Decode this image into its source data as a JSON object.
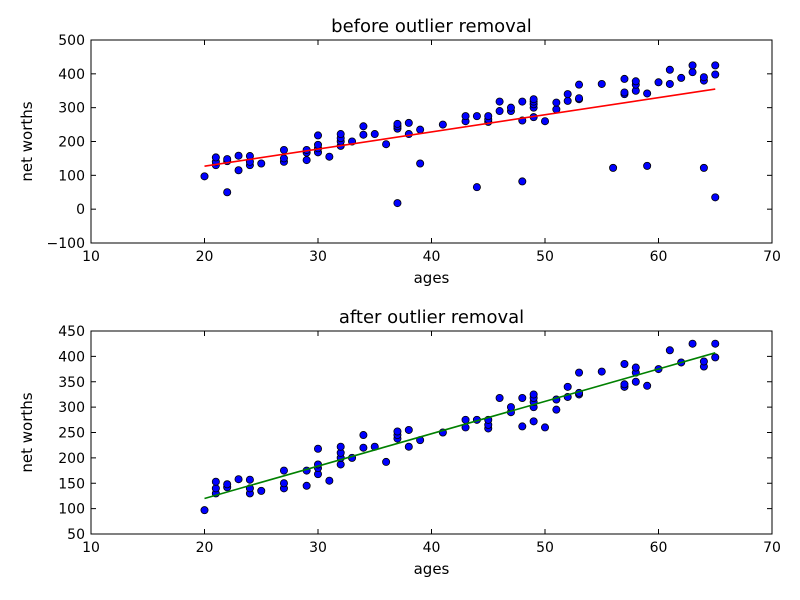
{
  "chart_data": [
    {
      "type": "scatter",
      "title": "before outlier removal",
      "xlabel": "ages",
      "ylabel": "net worths",
      "xlim": [
        10,
        70
      ],
      "ylim": [
        -100,
        500
      ],
      "xticks": [
        10,
        20,
        30,
        40,
        50,
        60,
        70
      ],
      "yticks": [
        -100,
        0,
        100,
        200,
        300,
        400,
        500
      ],
      "grid": false,
      "point_color": "#0000ff",
      "line_color": "#ff0000",
      "regression_line": {
        "x": [
          20,
          65
        ],
        "y": [
          127,
          355
        ]
      },
      "points": [
        [
          20,
          97
        ],
        [
          21,
          130
        ],
        [
          21,
          140
        ],
        [
          21,
          153
        ],
        [
          22,
          50
        ],
        [
          22,
          142
        ],
        [
          22,
          148
        ],
        [
          23,
          115
        ],
        [
          23,
          158
        ],
        [
          24,
          130
        ],
        [
          24,
          140
        ],
        [
          24,
          157
        ],
        [
          25,
          135
        ],
        [
          27,
          140
        ],
        [
          27,
          150
        ],
        [
          27,
          175
        ],
        [
          29,
          145
        ],
        [
          29,
          167
        ],
        [
          29,
          175
        ],
        [
          30,
          168
        ],
        [
          30,
          180
        ],
        [
          30,
          190
        ],
        [
          30,
          218
        ],
        [
          31,
          155
        ],
        [
          32,
          187
        ],
        [
          32,
          200
        ],
        [
          32,
          210
        ],
        [
          32,
          222
        ],
        [
          33,
          200
        ],
        [
          34,
          220
        ],
        [
          34,
          245
        ],
        [
          35,
          222
        ],
        [
          36,
          192
        ],
        [
          37,
          18
        ],
        [
          37,
          238
        ],
        [
          37,
          245
        ],
        [
          37,
          252
        ],
        [
          38,
          222
        ],
        [
          38,
          255
        ],
        [
          39,
          135
        ],
        [
          39,
          235
        ],
        [
          41,
          250
        ],
        [
          43,
          260
        ],
        [
          43,
          275
        ],
        [
          44,
          65
        ],
        [
          44,
          275
        ],
        [
          45,
          258
        ],
        [
          45,
          265
        ],
        [
          45,
          275
        ],
        [
          46,
          290
        ],
        [
          46,
          318
        ],
        [
          47,
          290
        ],
        [
          47,
          300
        ],
        [
          48,
          82
        ],
        [
          48,
          262
        ],
        [
          48,
          318
        ],
        [
          49,
          272
        ],
        [
          49,
          300
        ],
        [
          49,
          310
        ],
        [
          49,
          318
        ],
        [
          49,
          325
        ],
        [
          50,
          260
        ],
        [
          51,
          295
        ],
        [
          51,
          315
        ],
        [
          52,
          320
        ],
        [
          52,
          340
        ],
        [
          53,
          325
        ],
        [
          53,
          328
        ],
        [
          53,
          368
        ],
        [
          55,
          370
        ],
        [
          56,
          122
        ],
        [
          57,
          340
        ],
        [
          57,
          345
        ],
        [
          57,
          385
        ],
        [
          58,
          350
        ],
        [
          58,
          368
        ],
        [
          58,
          378
        ],
        [
          59,
          128
        ],
        [
          59,
          342
        ],
        [
          60,
          375
        ],
        [
          61,
          370
        ],
        [
          61,
          412
        ],
        [
          62,
          388
        ],
        [
          63,
          405
        ],
        [
          63,
          425
        ],
        [
          64,
          122
        ],
        [
          64,
          380
        ],
        [
          64,
          390
        ],
        [
          65,
          35
        ],
        [
          65,
          398
        ],
        [
          65,
          425
        ]
      ]
    },
    {
      "type": "scatter",
      "title": "after outlier removal",
      "xlabel": "ages",
      "ylabel": "net worths",
      "xlim": [
        10,
        70
      ],
      "ylim": [
        50,
        450
      ],
      "xticks": [
        10,
        20,
        30,
        40,
        50,
        60,
        70
      ],
      "yticks": [
        50,
        100,
        150,
        200,
        250,
        300,
        350,
        400,
        450
      ],
      "grid": false,
      "point_color": "#0000ff",
      "line_color": "#008000",
      "regression_line": {
        "x": [
          20,
          65
        ],
        "y": [
          120,
          407
        ]
      },
      "points": [
        [
          20,
          97
        ],
        [
          21,
          130
        ],
        [
          21,
          140
        ],
        [
          21,
          153
        ],
        [
          22,
          142
        ],
        [
          22,
          148
        ],
        [
          23,
          158
        ],
        [
          24,
          130
        ],
        [
          24,
          140
        ],
        [
          24,
          157
        ],
        [
          25,
          135
        ],
        [
          27,
          140
        ],
        [
          27,
          150
        ],
        [
          27,
          175
        ],
        [
          29,
          145
        ],
        [
          29,
          175
        ],
        [
          30,
          168
        ],
        [
          30,
          180
        ],
        [
          30,
          187
        ],
        [
          30,
          218
        ],
        [
          31,
          155
        ],
        [
          32,
          187
        ],
        [
          32,
          200
        ],
        [
          32,
          210
        ],
        [
          32,
          222
        ],
        [
          33,
          200
        ],
        [
          34,
          220
        ],
        [
          34,
          245
        ],
        [
          35,
          222
        ],
        [
          36,
          192
        ],
        [
          37,
          238
        ],
        [
          37,
          245
        ],
        [
          37,
          252
        ],
        [
          38,
          222
        ],
        [
          38,
          255
        ],
        [
          39,
          235
        ],
        [
          41,
          250
        ],
        [
          43,
          260
        ],
        [
          43,
          275
        ],
        [
          44,
          275
        ],
        [
          45,
          258
        ],
        [
          45,
          265
        ],
        [
          45,
          275
        ],
        [
          46,
          318
        ],
        [
          47,
          290
        ],
        [
          47,
          300
        ],
        [
          48,
          262
        ],
        [
          48,
          318
        ],
        [
          49,
          272
        ],
        [
          49,
          300
        ],
        [
          49,
          310
        ],
        [
          49,
          318
        ],
        [
          49,
          325
        ],
        [
          50,
          260
        ],
        [
          51,
          295
        ],
        [
          51,
          315
        ],
        [
          52,
          320
        ],
        [
          52,
          340
        ],
        [
          53,
          325
        ],
        [
          53,
          328
        ],
        [
          53,
          368
        ],
        [
          55,
          370
        ],
        [
          57,
          340
        ],
        [
          57,
          345
        ],
        [
          57,
          385
        ],
        [
          58,
          350
        ],
        [
          58,
          368
        ],
        [
          58,
          378
        ],
        [
          59,
          342
        ],
        [
          60,
          375
        ],
        [
          61,
          412
        ],
        [
          62,
          388
        ],
        [
          63,
          425
        ],
        [
          64,
          380
        ],
        [
          64,
          390
        ],
        [
          65,
          398
        ],
        [
          65,
          425
        ]
      ]
    }
  ]
}
